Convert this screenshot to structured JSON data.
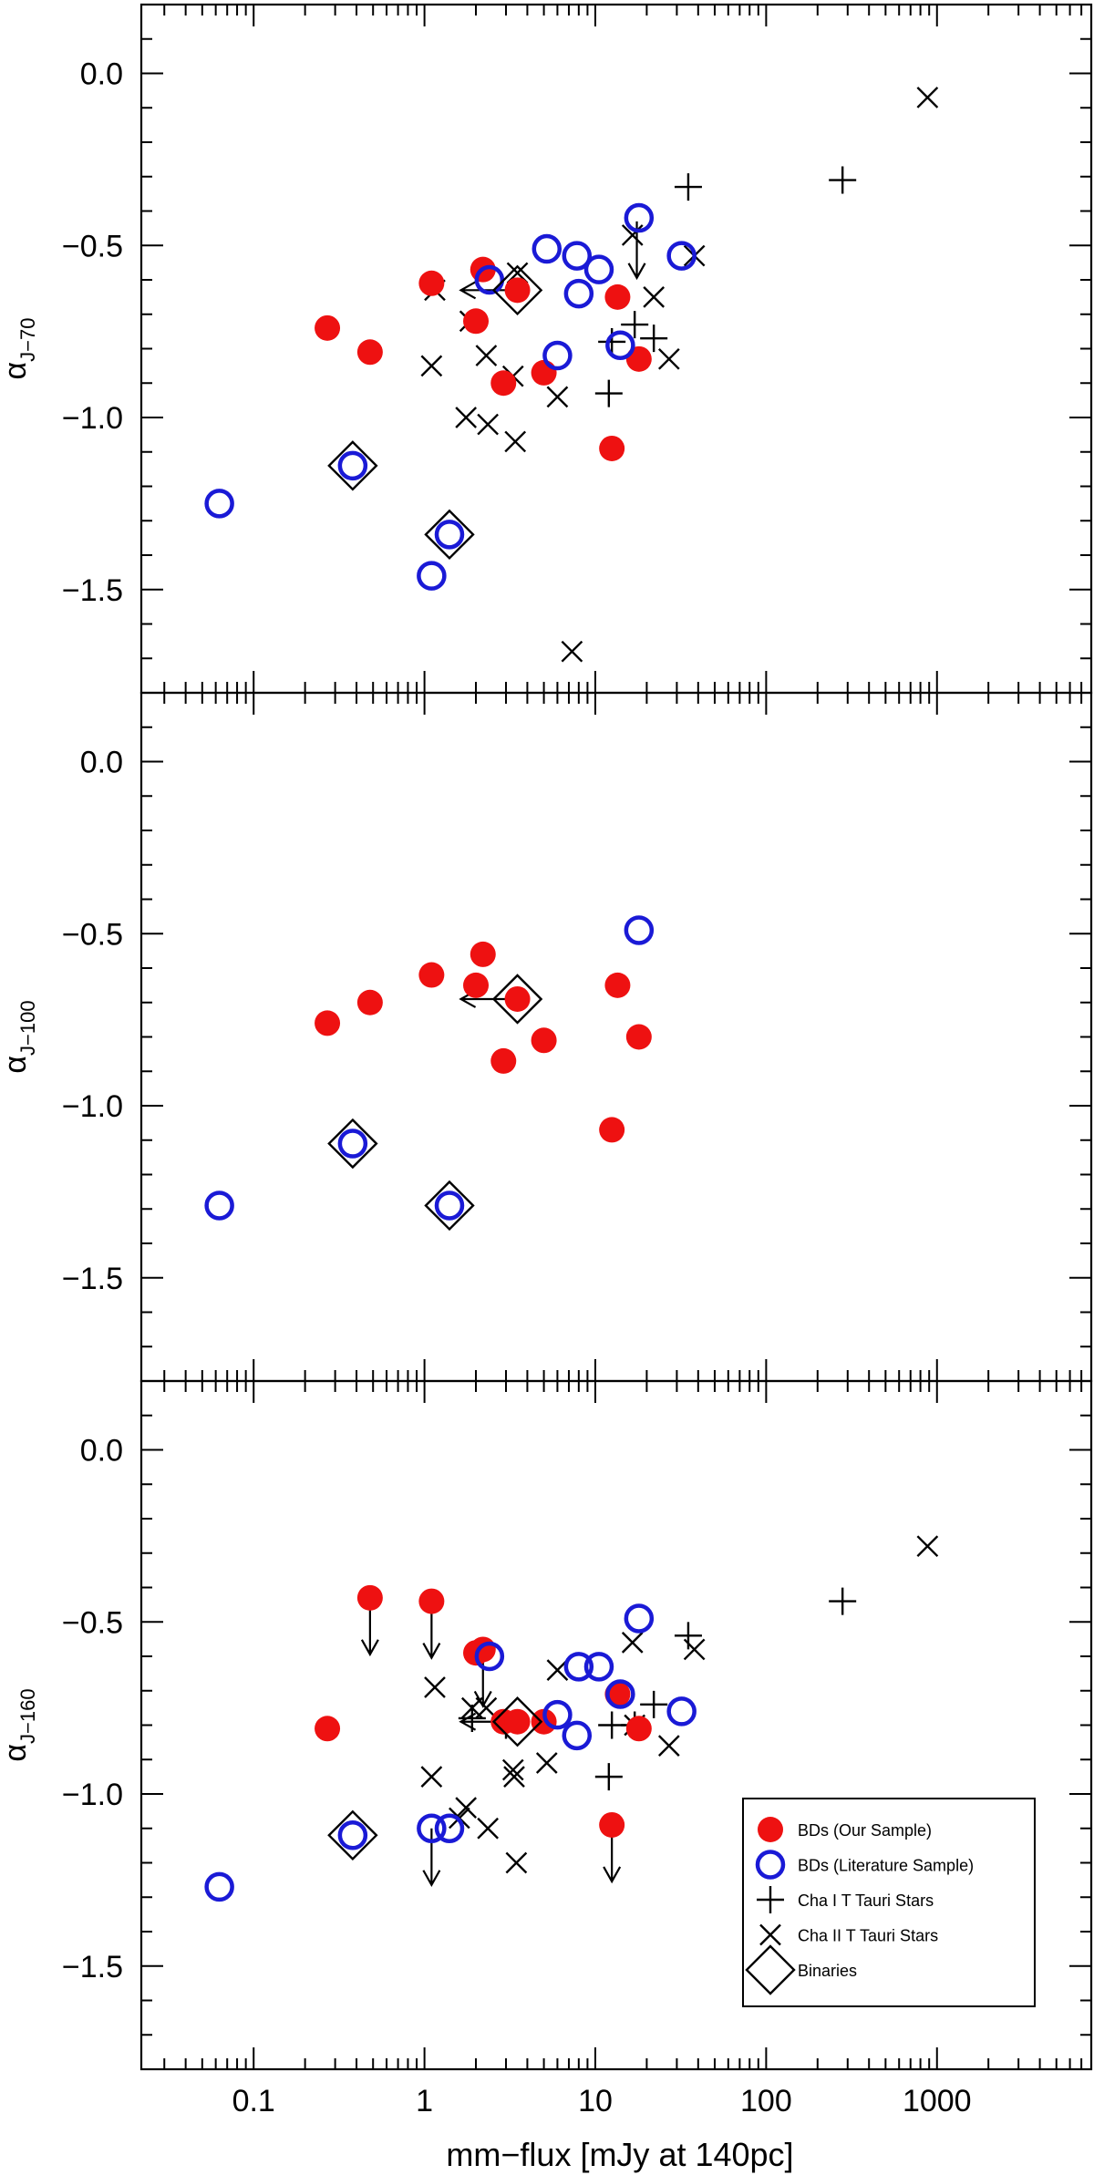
{
  "figure": {
    "xlabel": "mm−flux [mJy at 140pc]",
    "x_scale": "log",
    "xlim": [
      0.022,
      8000
    ],
    "x_ticks": [
      {
        "v": 0.1,
        "label": "0.1"
      },
      {
        "v": 1,
        "label": "1"
      },
      {
        "v": 10,
        "label": "10"
      },
      {
        "v": 100,
        "label": "100"
      },
      {
        "v": 1000,
        "label": "1000"
      }
    ],
    "y_ticks": [
      {
        "v": 0.0,
        "label": "0.0"
      },
      {
        "v": -0.5,
        "label": "−0.5"
      },
      {
        "v": -1.0,
        "label": "−1.0"
      },
      {
        "v": -1.5,
        "label": "−1.5"
      }
    ],
    "colors": {
      "red": "#ee1111",
      "blue": "#1a1ad6",
      "black": "#000000"
    }
  },
  "legend": {
    "placement": "lower-right of bottom panel",
    "items": [
      {
        "marker": "red-dot",
        "label": "BDs (Our Sample)"
      },
      {
        "marker": "blue-circle",
        "label": "BDs (Literature Sample)"
      },
      {
        "marker": "plus",
        "label": "Cha I T Tauri Stars"
      },
      {
        "marker": "cross",
        "label": "Cha II T Tauri Stars"
      },
      {
        "marker": "diamond",
        "label": "Binaries"
      }
    ]
  },
  "chart_data": [
    {
      "type": "scatter",
      "ylabel_main": "α",
      "ylabel_sub": "J−70",
      "ylim": [
        -1.8,
        0.2
      ],
      "series": [
        {
          "name": "BDs (Our Sample)",
          "marker": "red-dot",
          "points": [
            {
              "x": 0.27,
              "y": -0.74
            },
            {
              "x": 0.48,
              "y": -0.81
            },
            {
              "x": 1.1,
              "y": -0.61
            },
            {
              "x": 2.0,
              "y": -0.72
            },
            {
              "x": 2.2,
              "y": -0.57
            },
            {
              "x": 2.9,
              "y": -0.9
            },
            {
              "x": 3.5,
              "y": -0.63
            },
            {
              "x": 5.0,
              "y": -0.87
            },
            {
              "x": 12.5,
              "y": -1.09
            },
            {
              "x": 13.5,
              "y": -0.65
            },
            {
              "x": 18.0,
              "y": -0.83
            }
          ]
        },
        {
          "name": "BDs (Literature Sample)",
          "marker": "blue-circle",
          "points": [
            {
              "x": 0.063,
              "y": -1.25
            },
            {
              "x": 0.38,
              "y": -1.14
            },
            {
              "x": 1.1,
              "y": -1.46
            },
            {
              "x": 1.4,
              "y": -1.34
            },
            {
              "x": 2.4,
              "y": -0.6
            },
            {
              "x": 5.2,
              "y": -0.51
            },
            {
              "x": 6.0,
              "y": -0.82
            },
            {
              "x": 7.8,
              "y": -0.53
            },
            {
              "x": 8.0,
              "y": -0.64
            },
            {
              "x": 10.5,
              "y": -0.57
            },
            {
              "x": 14.0,
              "y": -0.79
            },
            {
              "x": 18.0,
              "y": -0.42
            },
            {
              "x": 32.0,
              "y": -0.53
            }
          ]
        },
        {
          "name": "Cha I T Tauri Stars",
          "marker": "plus",
          "points": [
            {
              "x": 12.0,
              "y": -0.93
            },
            {
              "x": 12.5,
              "y": -0.78
            },
            {
              "x": 17.0,
              "y": -0.73
            },
            {
              "x": 22.0,
              "y": -0.77
            },
            {
              "x": 35.0,
              "y": -0.33
            },
            {
              "x": 280.0,
              "y": -0.31
            }
          ]
        },
        {
          "name": "Cha II T Tauri Stars",
          "marker": "cross",
          "points": [
            {
              "x": 1.1,
              "y": -0.85
            },
            {
              "x": 1.15,
              "y": -0.63
            },
            {
              "x": 1.75,
              "y": -1.0
            },
            {
              "x": 1.85,
              "y": -0.72
            },
            {
              "x": 2.3,
              "y": -0.82
            },
            {
              "x": 2.35,
              "y": -1.02
            },
            {
              "x": 3.3,
              "y": -0.88
            },
            {
              "x": 3.4,
              "y": -1.07
            },
            {
              "x": 3.5,
              "y": -0.58
            },
            {
              "x": 6.0,
              "y": -0.94
            },
            {
              "x": 7.3,
              "y": -1.68
            },
            {
              "x": 16.5,
              "y": -0.47
            },
            {
              "x": 22.0,
              "y": -0.65
            },
            {
              "x": 27.0,
              "y": -0.83
            },
            {
              "x": 38.0,
              "y": -0.53
            },
            {
              "x": 880.0,
              "y": -0.07
            }
          ]
        },
        {
          "name": "Binaries",
          "marker": "diamond",
          "points": [
            {
              "x": 0.38,
              "y": -1.14
            },
            {
              "x": 1.4,
              "y": -1.34
            },
            {
              "x": 3.5,
              "y": -0.63
            }
          ]
        }
      ],
      "upper_limits": [
        {
          "x": 17.5,
          "y": -0.43,
          "direction": "down"
        }
      ],
      "left_limits": [
        {
          "x": 3.5,
          "y": -0.63,
          "direction": "left"
        }
      ]
    },
    {
      "type": "scatter",
      "ylabel_main": "α",
      "ylabel_sub": "J−100",
      "ylim": [
        -1.8,
        0.2
      ],
      "series": [
        {
          "name": "BDs (Our Sample)",
          "marker": "red-dot",
          "points": [
            {
              "x": 0.27,
              "y": -0.76
            },
            {
              "x": 0.48,
              "y": -0.7
            },
            {
              "x": 1.1,
              "y": -0.62
            },
            {
              "x": 2.0,
              "y": -0.65
            },
            {
              "x": 2.2,
              "y": -0.56
            },
            {
              "x": 2.9,
              "y": -0.87
            },
            {
              "x": 3.5,
              "y": -0.69
            },
            {
              "x": 5.0,
              "y": -0.81
            },
            {
              "x": 12.5,
              "y": -1.07
            },
            {
              "x": 13.5,
              "y": -0.65
            },
            {
              "x": 18.0,
              "y": -0.8
            }
          ]
        },
        {
          "name": "BDs (Literature Sample)",
          "marker": "blue-circle",
          "points": [
            {
              "x": 0.063,
              "y": -1.29
            },
            {
              "x": 0.38,
              "y": -1.11
            },
            {
              "x": 1.4,
              "y": -1.29
            },
            {
              "x": 18.0,
              "y": -0.49
            }
          ]
        },
        {
          "name": "Binaries",
          "marker": "diamond",
          "points": [
            {
              "x": 0.38,
              "y": -1.11
            },
            {
              "x": 1.4,
              "y": -1.29
            },
            {
              "x": 3.5,
              "y": -0.69
            }
          ]
        }
      ],
      "upper_limits": [],
      "left_limits": [
        {
          "x": 3.5,
          "y": -0.69,
          "direction": "left"
        }
      ]
    },
    {
      "type": "scatter",
      "ylabel_main": "α",
      "ylabel_sub": "J−160",
      "ylim": [
        -1.8,
        0.2
      ],
      "series": [
        {
          "name": "BDs (Our Sample)",
          "marker": "red-dot",
          "points": [
            {
              "x": 0.27,
              "y": -0.81
            },
            {
              "x": 0.48,
              "y": -0.43
            },
            {
              "x": 1.1,
              "y": -0.44
            },
            {
              "x": 2.0,
              "y": -0.59
            },
            {
              "x": 2.2,
              "y": -0.58
            },
            {
              "x": 2.9,
              "y": -0.79
            },
            {
              "x": 3.5,
              "y": -0.79
            },
            {
              "x": 5.0,
              "y": -0.79
            },
            {
              "x": 12.5,
              "y": -1.09
            },
            {
              "x": 13.5,
              "y": -0.71
            },
            {
              "x": 18.0,
              "y": -0.81
            }
          ]
        },
        {
          "name": "BDs (Literature Sample)",
          "marker": "blue-circle",
          "points": [
            {
              "x": 0.063,
              "y": -1.27
            },
            {
              "x": 0.38,
              "y": -1.12
            },
            {
              "x": 1.1,
              "y": -1.1
            },
            {
              "x": 1.4,
              "y": -1.1
            },
            {
              "x": 2.4,
              "y": -0.6
            },
            {
              "x": 6.0,
              "y": -0.77
            },
            {
              "x": 7.8,
              "y": -0.83
            },
            {
              "x": 8.0,
              "y": -0.63
            },
            {
              "x": 10.5,
              "y": -0.63
            },
            {
              "x": 14.0,
              "y": -0.71
            },
            {
              "x": 18.0,
              "y": -0.49
            },
            {
              "x": 32.0,
              "y": -0.76
            }
          ]
        },
        {
          "name": "Cha I T Tauri Stars",
          "marker": "plus",
          "points": [
            {
              "x": 1.9,
              "y": -0.78
            },
            {
              "x": 3.0,
              "y": -0.8
            },
            {
              "x": 12.0,
              "y": -0.95
            },
            {
              "x": 12.5,
              "y": -0.8
            },
            {
              "x": 17.0,
              "y": -0.8
            },
            {
              "x": 22.0,
              "y": -0.74
            },
            {
              "x": 35.0,
              "y": -0.54
            },
            {
              "x": 280.0,
              "y": -0.44
            }
          ]
        },
        {
          "name": "Cha II T Tauri Stars",
          "marker": "cross",
          "points": [
            {
              "x": 1.1,
              "y": -0.95
            },
            {
              "x": 1.15,
              "y": -0.69
            },
            {
              "x": 1.6,
              "y": -1.07
            },
            {
              "x": 1.75,
              "y": -1.04
            },
            {
              "x": 1.9,
              "y": -0.75
            },
            {
              "x": 2.3,
              "y": -0.75
            },
            {
              "x": 2.35,
              "y": -1.1
            },
            {
              "x": 3.3,
              "y": -0.93
            },
            {
              "x": 3.35,
              "y": -0.95
            },
            {
              "x": 3.45,
              "y": -1.2
            },
            {
              "x": 6.0,
              "y": -0.64
            },
            {
              "x": 5.2,
              "y": -0.91
            },
            {
              "x": 16.5,
              "y": -0.56
            },
            {
              "x": 17.0,
              "y": -0.8
            },
            {
              "x": 27.0,
              "y": -0.86
            },
            {
              "x": 38.0,
              "y": -0.58
            },
            {
              "x": 880.0,
              "y": -0.28
            }
          ]
        },
        {
          "name": "Binaries",
          "marker": "diamond",
          "points": [
            {
              "x": 0.38,
              "y": -1.12
            },
            {
              "x": 3.5,
              "y": -0.79
            }
          ]
        }
      ],
      "upper_limits": [
        {
          "x": 0.48,
          "y": -0.43,
          "direction": "down"
        },
        {
          "x": 1.1,
          "y": -0.44,
          "direction": "down"
        },
        {
          "x": 2.2,
          "y": -0.58,
          "direction": "down"
        },
        {
          "x": 1.1,
          "y": -1.1,
          "direction": "down"
        },
        {
          "x": 12.5,
          "y": -1.09,
          "direction": "down"
        }
      ],
      "left_limits": [
        {
          "x": 3.5,
          "y": -0.79,
          "direction": "left"
        }
      ]
    }
  ]
}
